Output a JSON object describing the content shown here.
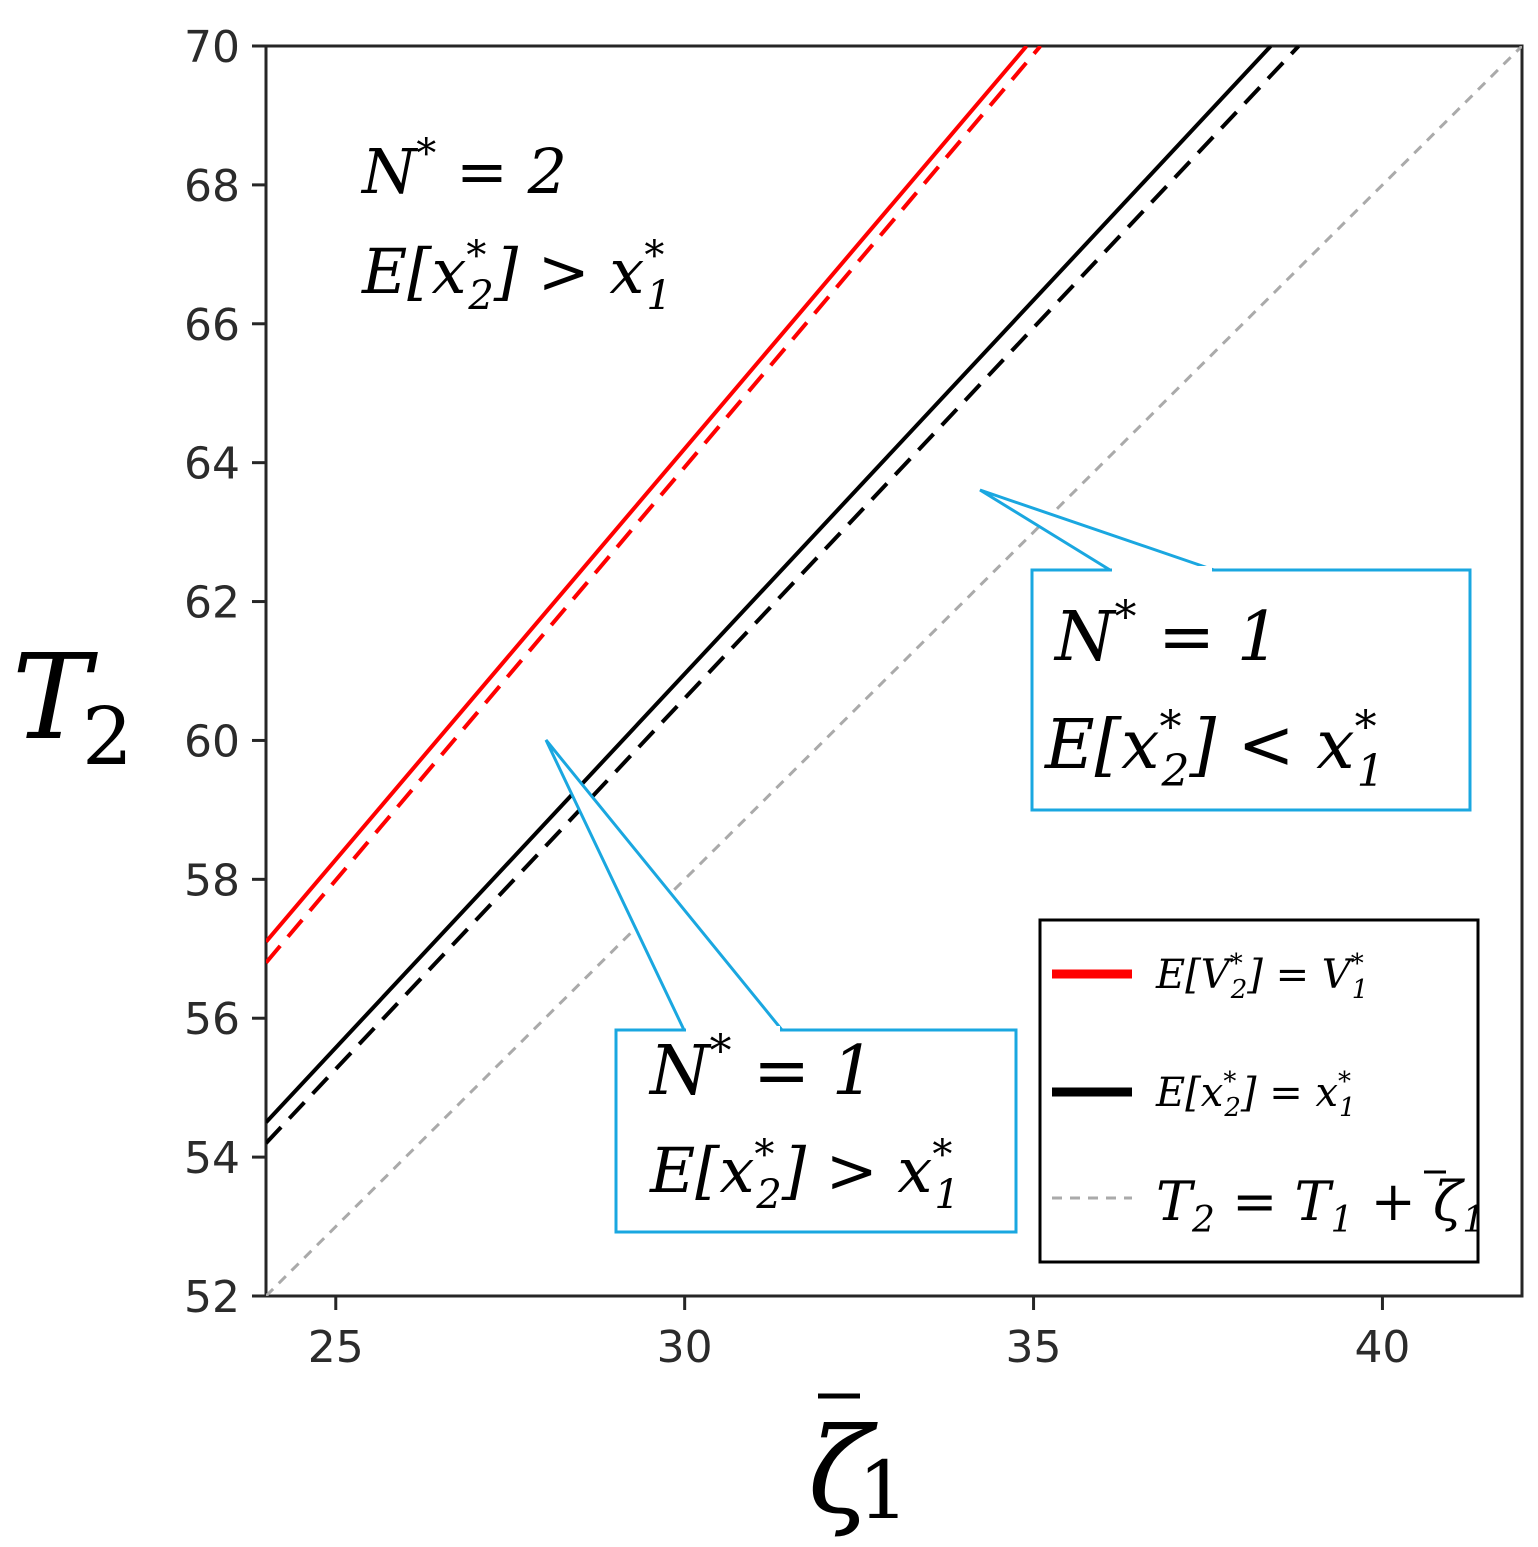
{
  "chart_data": {
    "type": "line",
    "xlabel": "ζ̄₁",
    "ylabel": "T₂",
    "xlim": [
      24,
      42
    ],
    "ylim": [
      52,
      70
    ],
    "xticks": [
      25,
      30,
      35,
      40
    ],
    "yticks": [
      52,
      54,
      56,
      58,
      60,
      62,
      64,
      66,
      68,
      70
    ],
    "grid": false,
    "legend_position": "bottom-right",
    "colors": {
      "red": "#ff0000",
      "black": "#000000",
      "gray": "#aaaaaa",
      "callout": "#1aa7e0"
    },
    "series": [
      {
        "name": "E[V₂*] = V₁*",
        "color": "#ff0000",
        "style": "solid",
        "legend": true,
        "x": [
          24.0,
          34.9
        ],
        "y": [
          57.1,
          70.0
        ]
      },
      {
        "color": "#ff0000",
        "style": "dashed",
        "legend": false,
        "x": [
          24.0,
          35.1
        ],
        "y": [
          56.8,
          70.0
        ]
      },
      {
        "name": "E[x₂*] = x₁*",
        "color": "#000000",
        "style": "solid",
        "legend": true,
        "x": [
          24.0,
          38.4
        ],
        "y": [
          54.5,
          70.0
        ]
      },
      {
        "color": "#000000",
        "style": "dashed",
        "legend": false,
        "x": [
          24.0,
          38.8
        ],
        "y": [
          54.2,
          70.0
        ]
      },
      {
        "name": "T₂ = T₁ + ζ̄₁",
        "color": "#aaaaaa",
        "style": "dashed",
        "legend": true,
        "x": [
          24.0,
          42.0
        ],
        "y": [
          52.0,
          70.0
        ]
      }
    ],
    "annotations": {
      "region_top": {
        "line1": "N* = 2",
        "line2": "E[x₂*] > x₁*"
      },
      "callout_right": {
        "line1": "N* = 1",
        "line2": "E[x₂*] < x₁*"
      },
      "callout_bottom": {
        "line1": "N* = 1",
        "line2": "E[x₂*] > x₁*"
      }
    }
  }
}
